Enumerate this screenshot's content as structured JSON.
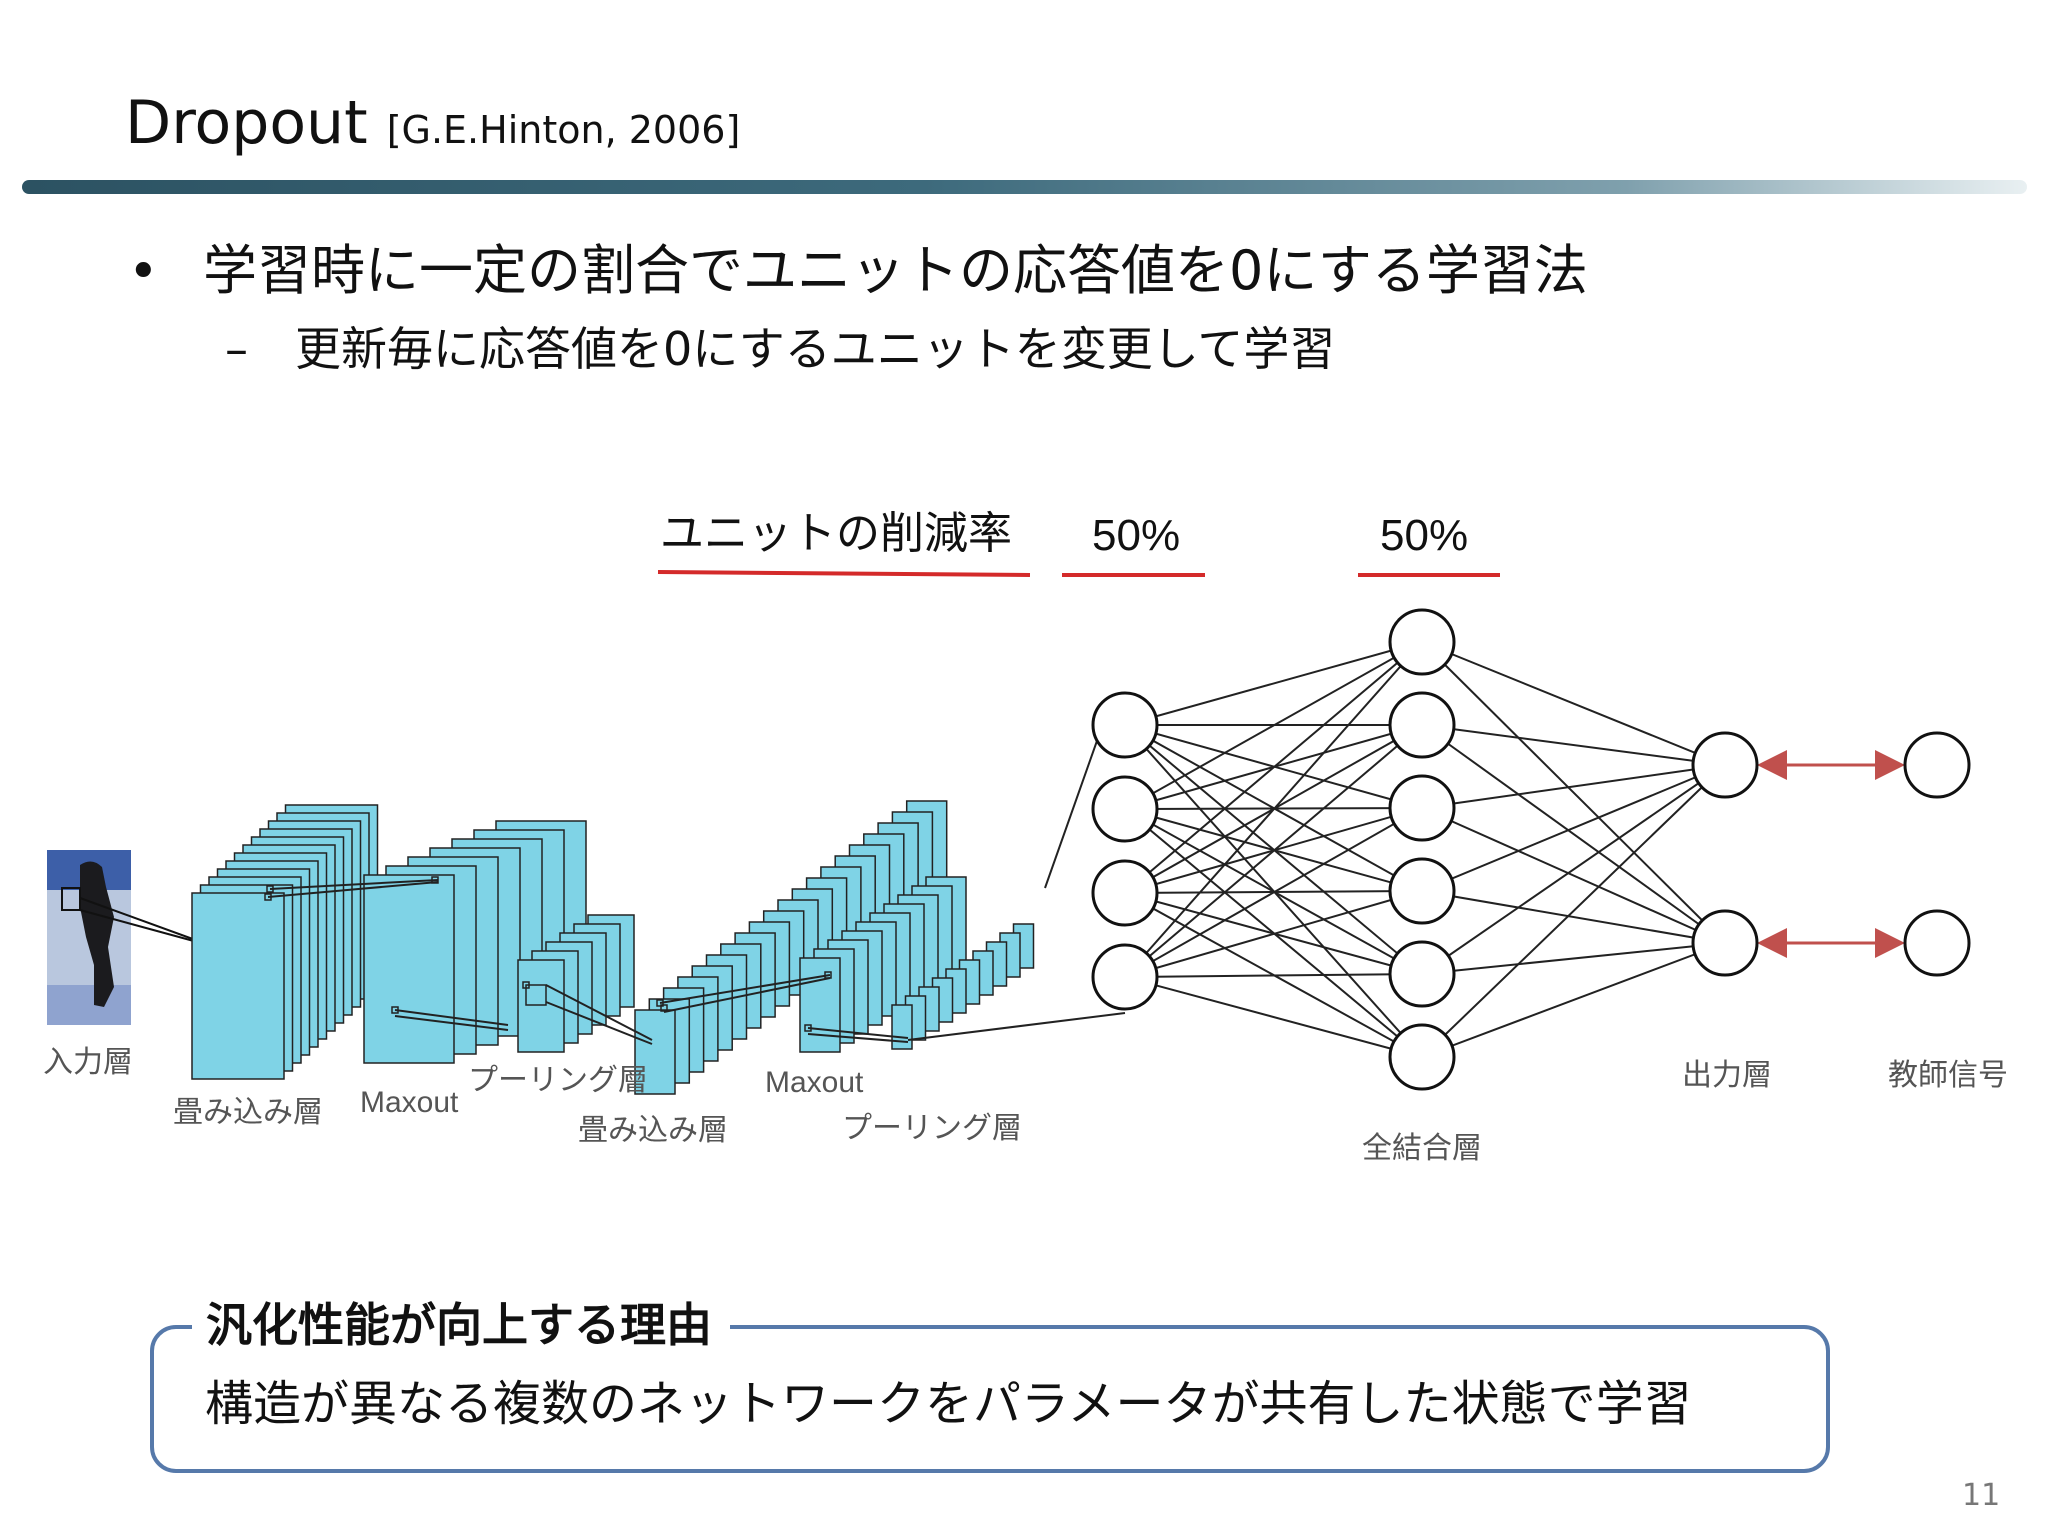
{
  "slide": {
    "title": "Dropout",
    "citation": "[G.E.Hinton, 2006]",
    "bullets": [
      {
        "text": "学習時に一定の割合でユニットの応答値を0にする学習法",
        "sub": [
          "更新毎に応答値を0にするユニットを変更して学習"
        ]
      }
    ],
    "bullet_symbol": "•",
    "sub_symbol": "–",
    "page_number": "11"
  },
  "diagram": {
    "rate_header": "ユニットの削減率",
    "rates": [
      "50%",
      "50%"
    ],
    "labels": {
      "input": "入力層",
      "conv1": "畳み込み層",
      "maxout1": "Maxout",
      "pool1": "プーリング層",
      "conv2": "畳み込み層",
      "maxout2": "Maxout",
      "pool2": "プーリング層",
      "fc": "全結合層",
      "output": "出力層",
      "teacher": "教師信号"
    },
    "colors": {
      "feature_map": "#7fd3e6",
      "underline": "#d42a2a",
      "arrow": "#c0504d",
      "box_border": "#5679aa"
    },
    "fc_layer1_units": 4,
    "fc_layer2_units": 6,
    "output_units": 2
  },
  "reason": {
    "title": "汎化性能が向上する理由",
    "body": "構造が異なる複数のネットワークをパラメータが共有した状態で学習"
  }
}
